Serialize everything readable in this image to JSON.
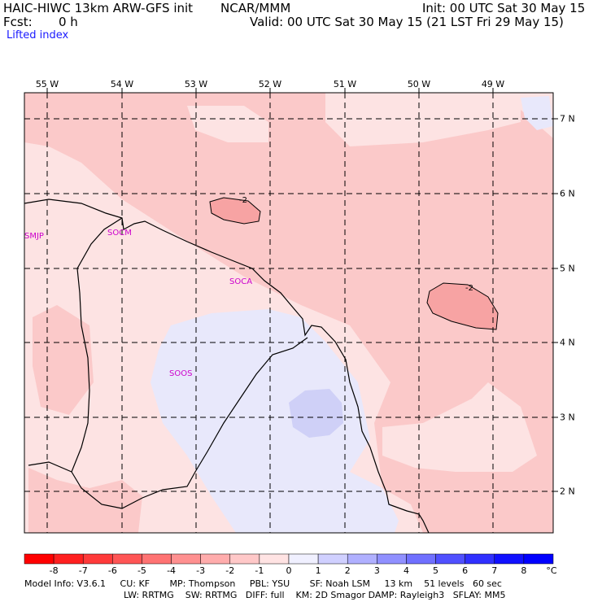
{
  "header": {
    "model": "HAIC-HIWC 13km ARW-GFS init",
    "org": "NCAR/MMM",
    "fcst_label": "Fcst:",
    "fcst_value": "0 h",
    "init": "Init: 00 UTC Sat 30 May 15",
    "valid": "Valid: 00 UTC Sat 30 May 15 (21 LST Fri 29 May 15)",
    "field": "Lifted index"
  },
  "map": {
    "lon_labels": [
      "55 W",
      "54 W",
      "53 W",
      "52 W",
      "51 W",
      "50 W",
      "49 W"
    ],
    "lat_labels": [
      "7 N",
      "6 N",
      "5 N",
      "4 N",
      "3 N",
      "2 N"
    ],
    "stations": [
      {
        "id": "SMJP"
      },
      {
        "id": "SOCM"
      },
      {
        "id": "SOCA"
      },
      {
        "id": "SOOS"
      }
    ],
    "contour_labels": [
      "-2",
      "-2"
    ],
    "colors": {
      "light_pink": "#fde3e3",
      "pink": "#fbc9c9",
      "medium_pink": "#f7a3a3",
      "light_blue": "#e8e8fb",
      "blue": "#cfd0f7",
      "station": "#cc00cc"
    }
  },
  "colorbar": {
    "unit": "°C",
    "ticks": [
      "-8",
      "-7",
      "-6",
      "-5",
      "-4",
      "-3",
      "-2",
      "-1",
      "0",
      "1",
      "2",
      "3",
      "4",
      "5",
      "6",
      "7",
      "8"
    ],
    "colors": [
      "#ff0000",
      "#ff2020",
      "#ff3a3a",
      "#ff5555",
      "#ff7373",
      "#ff9090",
      "#ffacac",
      "#ffc8c8",
      "#ffe3e3",
      "#f0f0ff",
      "#d0d0ff",
      "#b0b0ff",
      "#9090ff",
      "#7070ff",
      "#5050ff",
      "#3030ff",
      "#1010ff",
      "#0000ff"
    ]
  },
  "footer": {
    "line1": "Model Info: V3.6.1     CU: KF       MP: Thompson     PBL: YSU       SF: Noah LSM     13 km    51 levels   60 sec",
    "line2": "LW: RRTMG    SW: RRTMG   DIFF: full    KM: 2D Smagor DAMP: Rayleigh3   SFLAY: MM5"
  }
}
